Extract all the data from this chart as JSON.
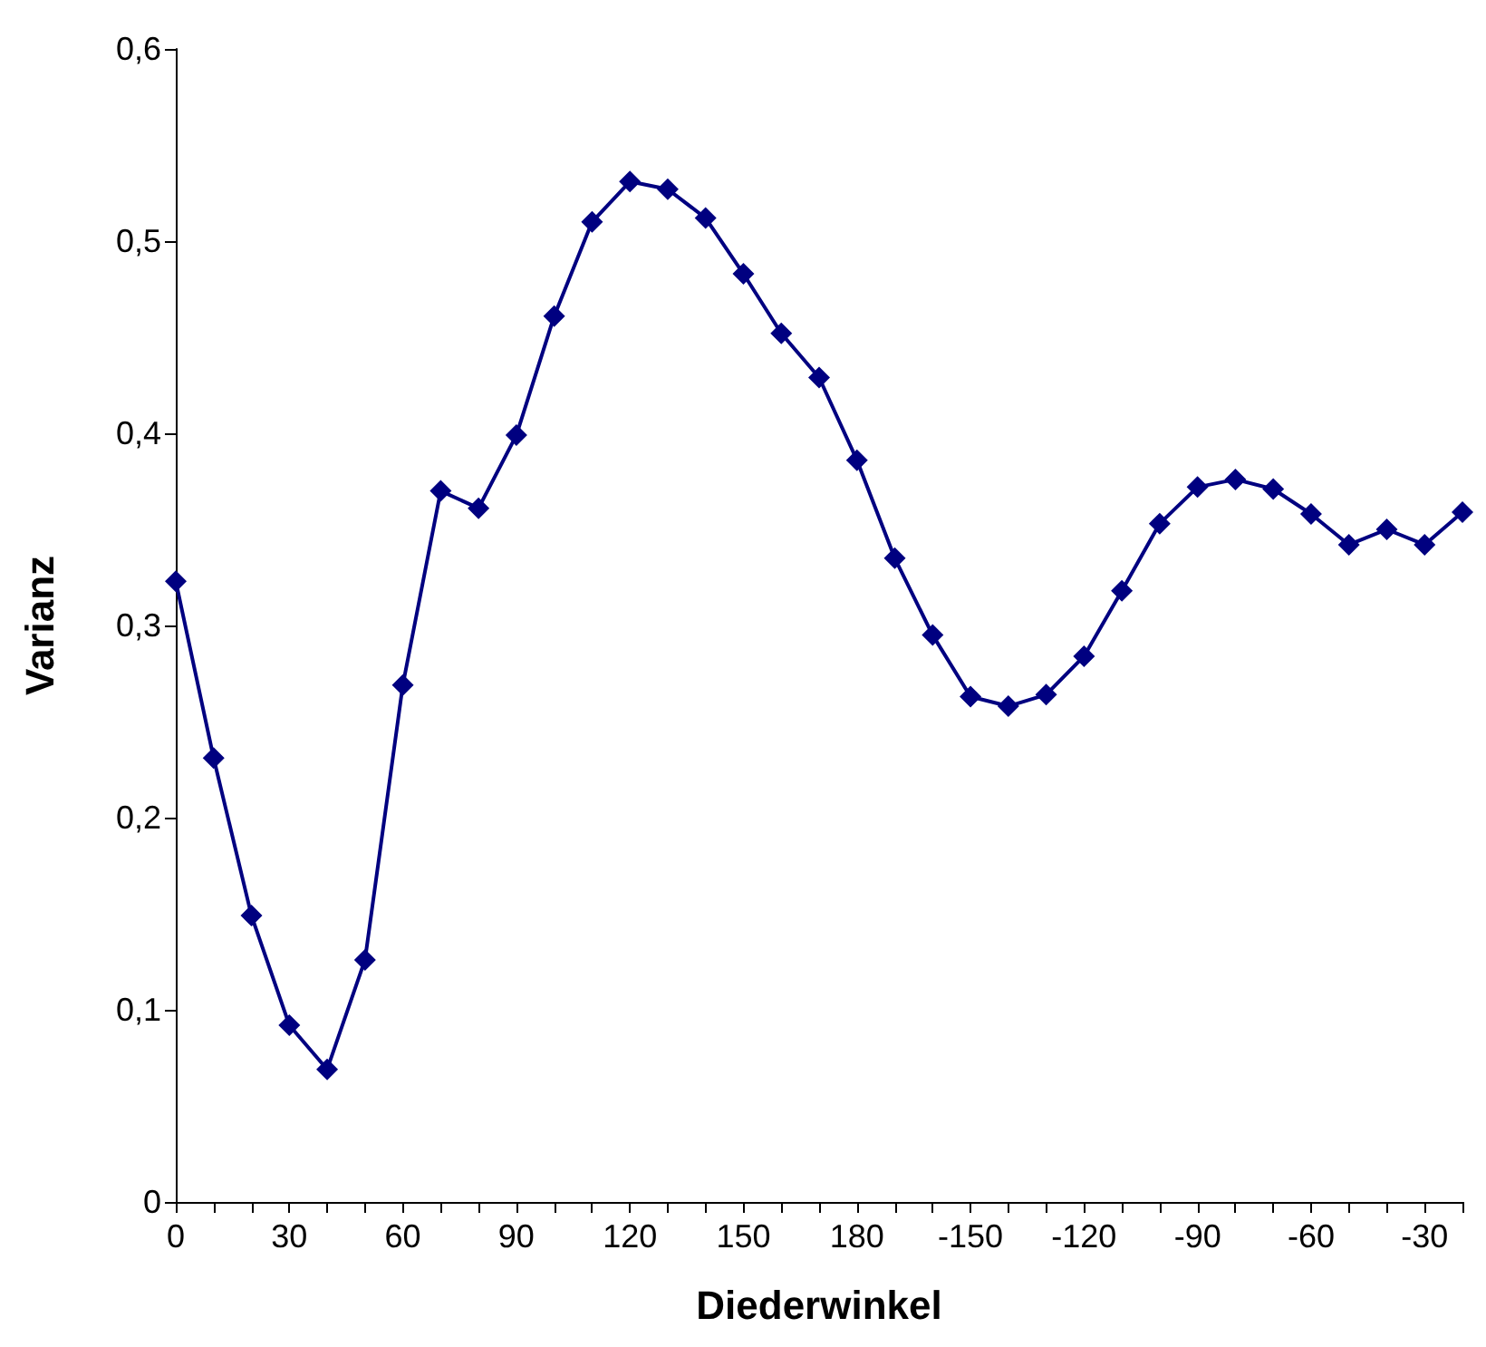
{
  "chart_data": {
    "type": "line",
    "xlabel": "Diederwinkel",
    "ylabel": "Varianz",
    "categories": [
      "0",
      null,
      null,
      "30",
      null,
      null,
      "60",
      null,
      null,
      "90",
      null,
      null,
      "120",
      null,
      null,
      "150",
      null,
      null,
      "180",
      null,
      null,
      "-150",
      null,
      null,
      "-120",
      null,
      null,
      "-90",
      null,
      null,
      "-60",
      null,
      null,
      "-30",
      null
    ],
    "series": [
      {
        "color": "#000080",
        "values": [
          0.323,
          0.231,
          0.149,
          0.092,
          0.069,
          0.126,
          0.269,
          0.37,
          0.361,
          0.399,
          0.461,
          0.51,
          0.531,
          0.527,
          0.512,
          0.483,
          0.452,
          0.429,
          0.386,
          0.335,
          0.295,
          0.263,
          0.258,
          0.264,
          0.284,
          0.318,
          0.353,
          0.372,
          0.376,
          0.371,
          0.358,
          0.342,
          0.35,
          0.342,
          0.359
        ]
      }
    ],
    "ylim": [
      0,
      0.6
    ],
    "yticks": [
      {
        "value": 0,
        "label": "0"
      },
      {
        "value": 0.1,
        "label": "0,1"
      },
      {
        "value": 0.2,
        "label": "0,2"
      },
      {
        "value": 0.3,
        "label": "0,3"
      },
      {
        "value": 0.4,
        "label": "0,4"
      },
      {
        "value": 0.5,
        "label": "0,5"
      },
      {
        "value": 0.6,
        "label": "0,6"
      }
    ],
    "grid": false,
    "marker": "diamond",
    "line_style": "solid"
  }
}
